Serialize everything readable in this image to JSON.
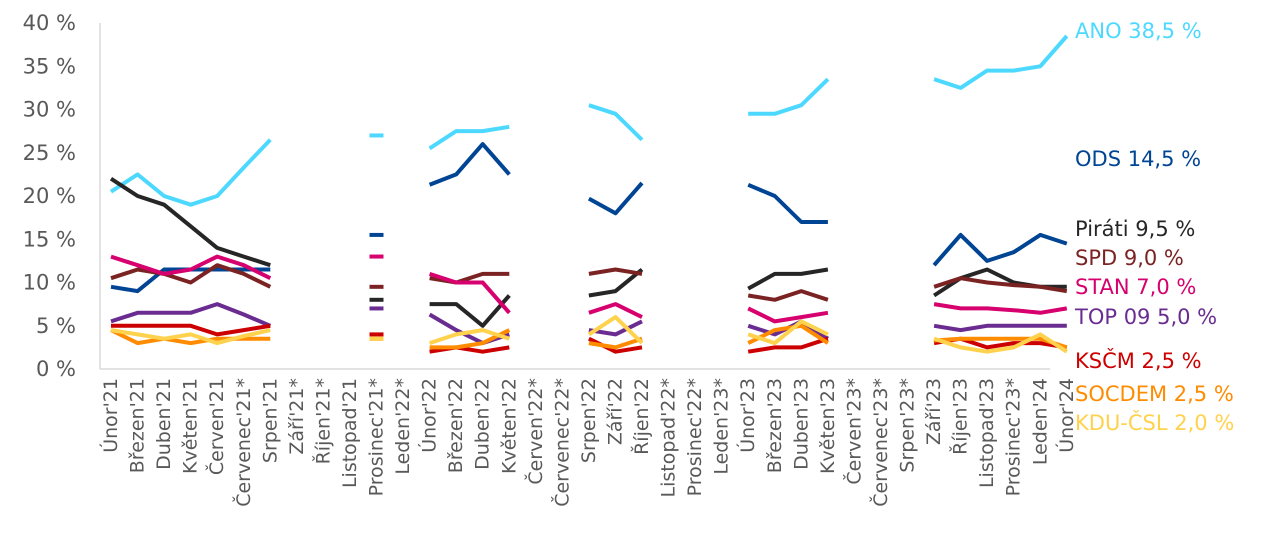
{
  "chart_data": {
    "type": "line",
    "title": "",
    "xlabel": "",
    "ylabel": "",
    "ylim": [
      0,
      40
    ],
    "yticks": [
      0,
      5,
      10,
      15,
      20,
      25,
      30,
      35,
      40
    ],
    "ytick_labels": [
      "0 %",
      "5 %",
      "10 %",
      "15 %",
      "20 %",
      "25 %",
      "30 %",
      "35 %",
      "40 %"
    ],
    "grid": false,
    "legend_placement": "right",
    "categories": [
      "Únor'21",
      "Březen'21",
      "Duben'21",
      "Květen'21",
      "Červen'21",
      "Červenec'21*",
      "Srpen'21",
      "Září'21*",
      "Říjen'21*",
      "Listopad'21",
      "Prosinec'21*",
      "Leden'22*",
      "Únor'22",
      "Březen'22",
      "Duben'22",
      "Květen'22",
      "Červen'22*",
      "Červenec'22*",
      "Srpen'22",
      "Září'22",
      "Říjen'22",
      "Listopad'22*",
      "Prosinec'22*",
      "Leden'23*",
      "Únor'23",
      "Březen'23",
      "Duben'23",
      "Květen'23",
      "Červen'23*",
      "Červenec'23*",
      "Srpen'23*",
      "Září'23",
      "Říjen'23",
      "Listopad'23",
      "Prosinec'23*",
      "Leden'24",
      "Únor'24"
    ],
    "series": [
      {
        "name": "ANO",
        "legend": "ANO 38,5 %",
        "color": "#4dd9ff",
        "values": [
          20.5,
          22.5,
          20,
          19,
          20,
          23.3,
          26.5,
          null,
          null,
          null,
          27,
          null,
          25.5,
          27.5,
          27.5,
          28,
          null,
          null,
          30.5,
          29.5,
          26.5,
          null,
          null,
          null,
          29.5,
          29.5,
          30.5,
          33.5,
          null,
          null,
          null,
          33.5,
          32.5,
          34.5,
          34.5,
          35,
          38.5
        ]
      },
      {
        "name": "ODS",
        "legend": "ODS 14,5 %",
        "color": "#004494",
        "values": [
          9.5,
          9,
          11.5,
          11.5,
          11.5,
          11.5,
          11.5,
          null,
          null,
          null,
          15.5,
          null,
          21.3,
          22.5,
          26,
          22.5,
          null,
          null,
          19.7,
          18,
          21.5,
          null,
          null,
          null,
          21.3,
          20,
          17,
          17,
          null,
          null,
          null,
          12,
          15.5,
          12.5,
          13.5,
          15.5,
          14.5
        ]
      },
      {
        "name": "Piráti",
        "legend": "Piráti 9,5 %",
        "color": "#262626",
        "values": [
          22,
          20,
          19,
          16.5,
          14,
          13,
          12,
          null,
          null,
          null,
          8,
          null,
          7.5,
          7.5,
          5,
          8.5,
          null,
          null,
          8.5,
          9,
          11.5,
          null,
          null,
          null,
          9.3,
          11,
          11,
          11.5,
          null,
          null,
          null,
          8.5,
          10.5,
          11.5,
          10,
          9.5,
          9.5
        ]
      },
      {
        "name": "SPD",
        "legend": "SPD 9,0 %",
        "color": "#7b2323",
        "values": [
          10.5,
          11.5,
          11,
          10,
          12,
          11,
          9.5,
          null,
          null,
          null,
          9.5,
          null,
          10.5,
          10,
          11,
          11,
          null,
          null,
          11,
          11.5,
          11,
          null,
          null,
          null,
          8.5,
          8,
          9,
          8,
          null,
          null,
          null,
          9.5,
          10.5,
          10,
          9.7,
          9.5,
          9
        ]
      },
      {
        "name": "STAN",
        "legend": "STAN 7,0 %",
        "color": "#d6006e",
        "values": [
          13,
          12,
          11,
          11.5,
          13,
          12,
          10.5,
          null,
          null,
          null,
          13,
          null,
          11,
          10,
          10,
          6.5,
          null,
          null,
          6.5,
          7.5,
          6,
          null,
          null,
          null,
          7,
          5.5,
          6,
          6.5,
          null,
          null,
          null,
          7.5,
          7,
          7,
          6.8,
          6.5,
          7
        ]
      },
      {
        "name": "TOP 09",
        "legend": "TOP 09 5,0 %",
        "color": "#6a2c91",
        "values": [
          5.5,
          6.5,
          6.5,
          6.5,
          7.5,
          6.3,
          5,
          null,
          null,
          null,
          7,
          null,
          6.3,
          4.5,
          3,
          4,
          null,
          null,
          4.5,
          4,
          5.5,
          null,
          null,
          null,
          5,
          4,
          5.5,
          3.5,
          null,
          null,
          null,
          5,
          4.5,
          5,
          5,
          5,
          5
        ]
      },
      {
        "name": "KSČM",
        "legend": "KSČM 2,5 %",
        "color": "#cc0000",
        "values": [
          5,
          5,
          5,
          5,
          4,
          4.5,
          5,
          null,
          null,
          null,
          4,
          null,
          2,
          2.5,
          2,
          2.5,
          null,
          null,
          3.5,
          2,
          2.5,
          null,
          null,
          null,
          2,
          2.5,
          2.5,
          3.5,
          null,
          null,
          null,
          3,
          3.5,
          2.5,
          3,
          3,
          2.5
        ]
      },
      {
        "name": "SOCDEM",
        "legend": "SOCDEM 2,5 %",
        "color": "#ff8c00",
        "values": [
          4.5,
          3,
          3.5,
          3,
          3.5,
          3.5,
          3.5,
          null,
          null,
          null,
          3.5,
          null,
          2.5,
          2.5,
          3,
          4.5,
          null,
          null,
          3,
          2.5,
          3.5,
          null,
          null,
          null,
          3,
          4.5,
          5,
          3,
          null,
          null,
          null,
          3.3,
          3.5,
          3.5,
          3.5,
          3.5,
          2.5
        ]
      },
      {
        "name": "KDU-ČSL",
        "legend": "KDU-ČSL 2,0 %",
        "color": "#ffd24d",
        "values": [
          4.5,
          4,
          3.5,
          4,
          3,
          3.8,
          4.5,
          null,
          null,
          null,
          3.5,
          null,
          3,
          4,
          4.5,
          3.5,
          null,
          null,
          4,
          6,
          3,
          null,
          null,
          null,
          4,
          3,
          5.5,
          4,
          null,
          null,
          null,
          3.5,
          2.5,
          2,
          2.5,
          4,
          2
        ]
      }
    ]
  }
}
